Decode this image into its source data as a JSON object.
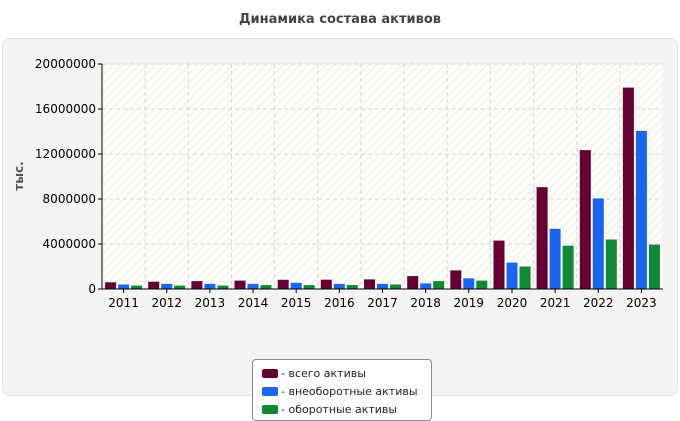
{
  "chart_data": {
    "type": "bar",
    "title": "Динамика состава активов",
    "xlabel": "",
    "ylabel": "тыс.",
    "categories": [
      "2011",
      "2012",
      "2013",
      "2014",
      "2015",
      "2016",
      "2017",
      "2018",
      "2019",
      "2020",
      "2021",
      "2022",
      "2023"
    ],
    "series": [
      {
        "name": "- всего активы",
        "color": "#660033",
        "values": [
          600000,
          650000,
          700000,
          750000,
          820000,
          830000,
          850000,
          1150000,
          1650000,
          4300000,
          9050000,
          12350000,
          17900000
        ]
      },
      {
        "name": "- внеоборотные активы",
        "color": "#1a66ee",
        "values": [
          400000,
          450000,
          450000,
          450000,
          550000,
          450000,
          450000,
          500000,
          950000,
          2350000,
          5350000,
          8050000,
          14050000
        ]
      },
      {
        "name": "- оборотные активы",
        "color": "#118833",
        "values": [
          300000,
          300000,
          300000,
          350000,
          350000,
          350000,
          400000,
          700000,
          750000,
          2000000,
          3850000,
          4400000,
          3950000
        ]
      }
    ],
    "yticks": [
      "0",
      "4000000",
      "8000000",
      "12000000",
      "16000000",
      "20000000"
    ],
    "ylim": [
      0,
      20000000
    ],
    "grid": true,
    "legend_position": "bottom-center"
  }
}
